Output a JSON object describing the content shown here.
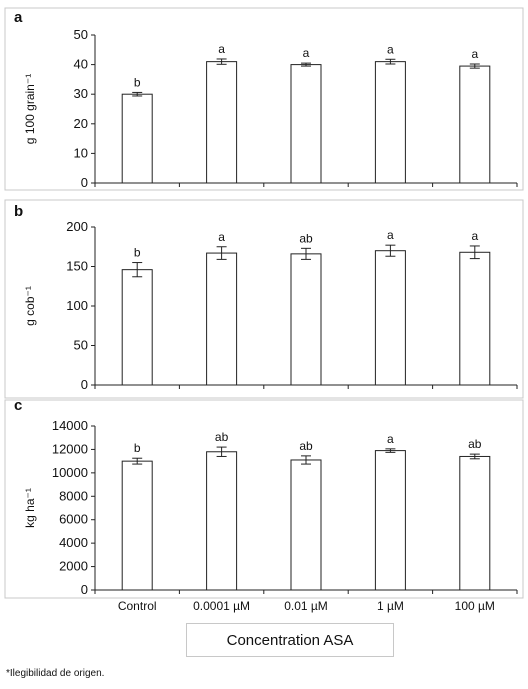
{
  "chart_data": [
    {
      "type": "bar",
      "panel_label": "a",
      "ylabel": "g 100 grain⁻¹",
      "ylim": [
        0,
        50
      ],
      "yticks": [
        0,
        10,
        20,
        30,
        40,
        50
      ],
      "categories": [
        "Control",
        "0.0001 µM",
        "0.01 µM",
        "1 µM",
        "100 µM"
      ],
      "values": [
        30,
        41,
        40,
        41,
        39.5
      ],
      "errors": [
        0.6,
        0.9,
        0.5,
        0.8,
        0.7
      ],
      "significance": [
        "b",
        "a",
        "a",
        "a",
        "a"
      ]
    },
    {
      "type": "bar",
      "panel_label": "b",
      "ylabel": "g cob⁻¹",
      "ylim": [
        0,
        200
      ],
      "yticks": [
        0,
        50,
        100,
        150,
        200
      ],
      "categories": [
        "Control",
        "0.0001 µM",
        "0.01 µM",
        "1 µM",
        "100 µM"
      ],
      "values": [
        146,
        167,
        166,
        170,
        168
      ],
      "errors": [
        9,
        8,
        7,
        7,
        8
      ],
      "significance": [
        "b",
        "a",
        "ab",
        "a",
        "a"
      ]
    },
    {
      "type": "bar",
      "panel_label": "c",
      "ylabel": "kg ha⁻¹",
      "ylim": [
        0,
        14000
      ],
      "yticks": [
        0,
        2000,
        4000,
        6000,
        8000,
        10000,
        12000,
        14000
      ],
      "categories": [
        "Control",
        "0.0001 µM",
        "0.01 µM",
        "1 µM",
        "100 µM"
      ],
      "values": [
        11000,
        11800,
        11100,
        11900,
        11400
      ],
      "errors": [
        250,
        400,
        350,
        150,
        200
      ],
      "significance": [
        "b",
        "ab",
        "ab",
        "a",
        "ab"
      ]
    }
  ],
  "x_axis_title": "Concentration ASA",
  "footnote": "*Ilegibilidad de origen."
}
